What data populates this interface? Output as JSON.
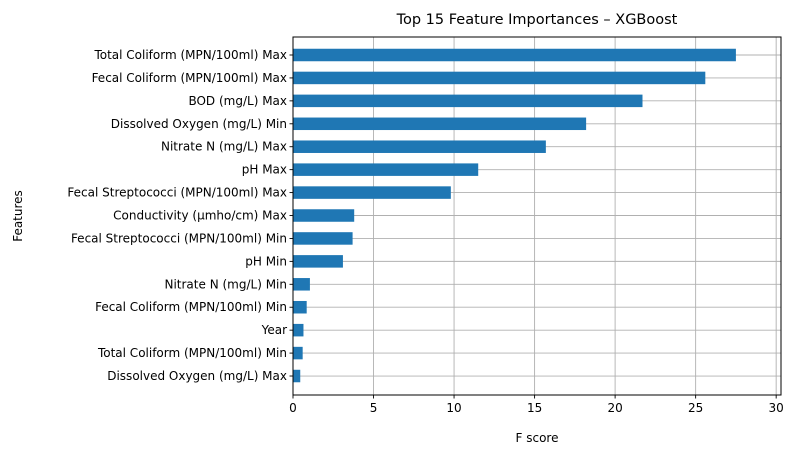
{
  "chart_data": {
    "type": "bar",
    "orientation": "horizontal",
    "title": "Top 15 Feature Importances – XGBoost",
    "xlabel": "F score",
    "ylabel": "Features",
    "xlim": [
      0,
      30.3
    ],
    "xticks": [
      0,
      5,
      10,
      15,
      20,
      25,
      30
    ],
    "grid": true,
    "bar_color": "#1f77b4",
    "categories": [
      "Total Coliform (MPN/100ml) Max",
      "Fecal Coliform (MPN/100ml) Max",
      "BOD (mg/L) Max",
      "Dissolved Oxygen (mg/L) Min",
      "Nitrate N (mg/L) Max",
      "pH Max",
      "Fecal Streptococci (MPN/100ml) Max",
      "Conductivity (µmho/cm) Max",
      "Fecal Streptococci (MPN/100ml) Min",
      "pH Min",
      "Nitrate N (mg/L) Min",
      "Fecal Coliform (MPN/100ml) Min",
      "Year",
      "Total Coliform (MPN/100ml) Min",
      "Dissolved Oxygen (mg/L) Max"
    ],
    "values": [
      27.5,
      25.6,
      21.7,
      18.2,
      15.7,
      11.5,
      9.8,
      3.8,
      3.7,
      3.1,
      1.05,
      0.85,
      0.65,
      0.6,
      0.45
    ]
  }
}
